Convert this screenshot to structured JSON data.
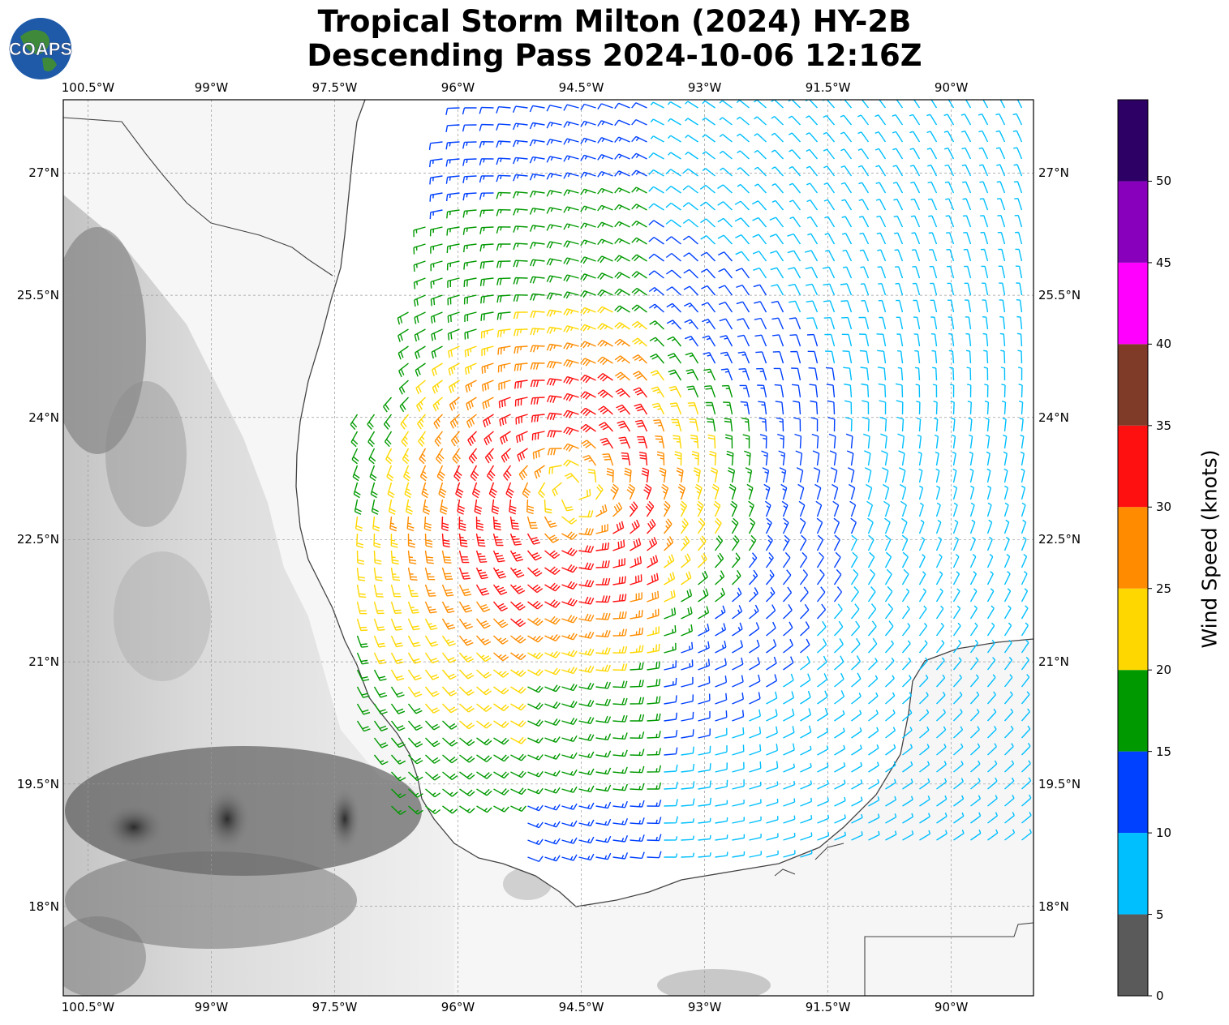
{
  "title": {
    "line1": "Tropical Storm Milton (2024) HY-2B",
    "line2": "Descending Pass 2024-10-06 12:16Z"
  },
  "logo": {
    "text": "COAPS",
    "icon": "globe-logo-icon"
  },
  "map": {
    "lon_range": [
      -100.8,
      -89.0
    ],
    "lat_range": [
      16.9,
      27.9
    ],
    "lon_ticks": [
      "100.5°W",
      "99°W",
      "97.5°W",
      "96°W",
      "94.5°W",
      "93°W",
      "91.5°W",
      "90°W"
    ],
    "lat_ticks": [
      "27°N",
      "25.5°N",
      "24°N",
      "22.5°N",
      "21°N",
      "19.5°N",
      "18°N"
    ],
    "lon_tick_values": [
      -100.5,
      -99,
      -97.5,
      -96,
      -94.5,
      -93,
      -91.5,
      -90
    ],
    "lat_tick_values": [
      27,
      25.5,
      24,
      22.5,
      21,
      19.5,
      18
    ],
    "gridlines": true,
    "background": "terrain-grayscale",
    "storm_center": {
      "lon": -94.6,
      "lat": 23.1
    },
    "wind_barbs": "counter-clockwise circulation around storm center; max 30-35 kt south and west of center"
  },
  "colorbar": {
    "title": "Wind Speed (knots)",
    "labels": [
      "0",
      "5",
      "10",
      "15",
      "20",
      "25",
      "30",
      "35",
      "40",
      "45",
      "50"
    ],
    "colors": [
      "#5a5a5a",
      "#00bfff",
      "#0040ff",
      "#009900",
      "#ffd700",
      "#ff8c00",
      "#ff1010",
      "#7f3b28",
      "#ff00ff",
      "#8800bb",
      "#2d0066"
    ],
    "bins": [
      [
        0,
        5
      ],
      [
        5,
        10
      ],
      [
        10,
        15
      ],
      [
        15,
        20
      ],
      [
        20,
        25
      ],
      [
        25,
        30
      ],
      [
        30,
        35
      ],
      [
        35,
        40
      ],
      [
        40,
        45
      ],
      [
        45,
        50
      ],
      [
        50,
        55
      ]
    ]
  }
}
